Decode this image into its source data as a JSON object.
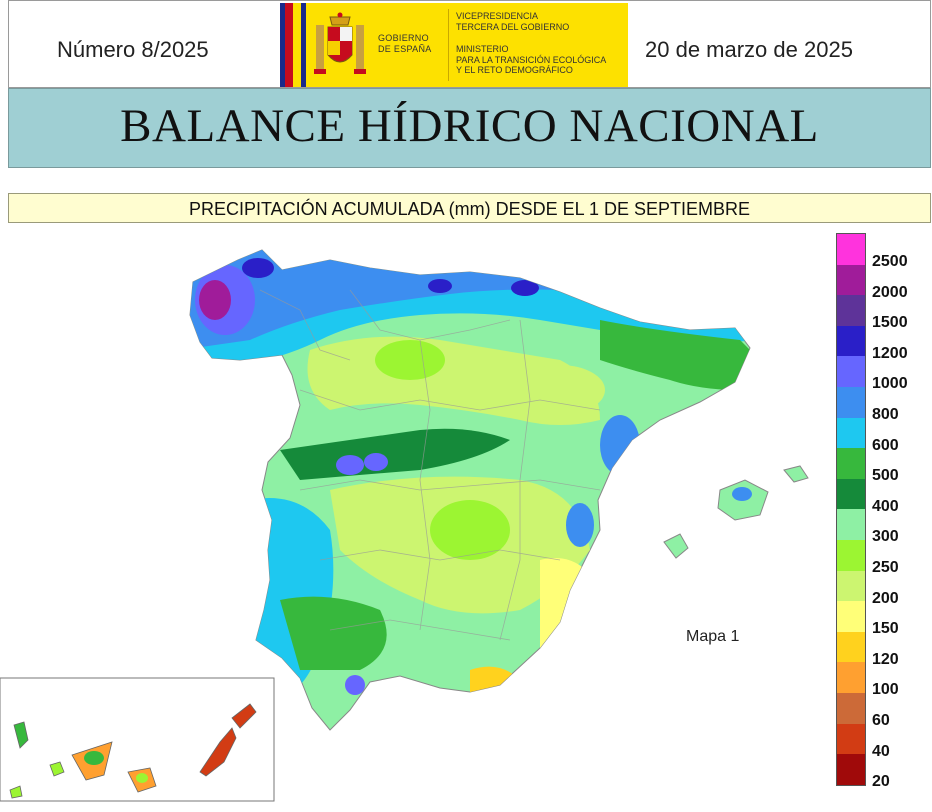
{
  "header": {
    "issue_number": "Número 8/2025",
    "date": "20 de marzo de 2025",
    "logo": {
      "gobierno": [
        "GOBIERNO",
        "DE ESPAÑA"
      ],
      "vicepresidencia": [
        "VICEPRESIDENCIA",
        "TERCERA DEL GOBIERNO"
      ],
      "ministerio": [
        "MINISTERIO",
        "PARA LA TRANSICIÓN ECOLÓGICA",
        "Y EL RETO DEMOGRÁFICO"
      ]
    }
  },
  "title": "BALANCE HÍDRICO NACIONAL",
  "subtitle": "PRECIPITACIÓN ACUMULADA (mm) DESDE EL 1 DE SEPTIEMBRE",
  "map": {
    "label": "Mapa 1"
  },
  "legend": {
    "colors": [
      "#ff33dd",
      "#a01c9a",
      "#5e3399",
      "#2a1fc8",
      "#6666ff",
      "#3d8ef0",
      "#1ec8f0",
      "#37b83d",
      "#158a3a",
      "#8ef0a4",
      "#9cf532",
      "#ccf570",
      "#ffff78",
      "#ffd21e",
      "#ffa030",
      "#cc6a38",
      "#d23c14",
      "#a00a0a"
    ],
    "labels": [
      "2500",
      "2000",
      "1500",
      "1200",
      "1000",
      "800",
      "600",
      "500",
      "400",
      "300",
      "250",
      "200",
      "150",
      "120",
      "100",
      "60",
      "40",
      "20"
    ]
  }
}
